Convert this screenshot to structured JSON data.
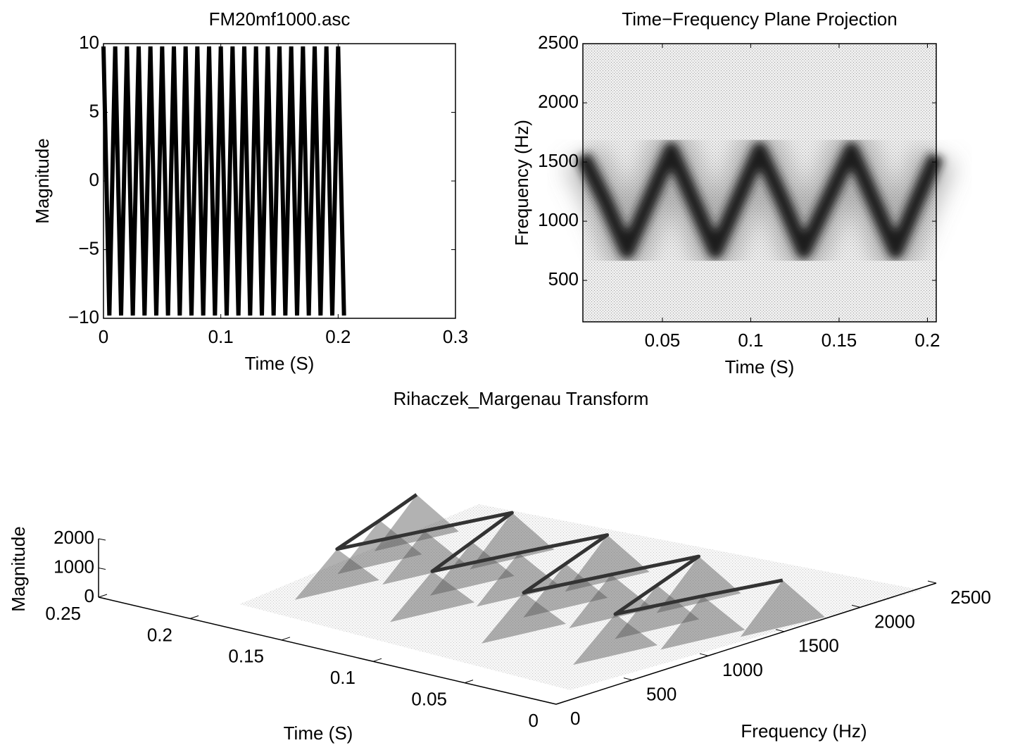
{
  "chart_data": [
    {
      "type": "line",
      "title": "FM20mf1000.asc",
      "x_label": "Time (S)",
      "y_label": "Magnitude",
      "color": "#000000",
      "x": [
        0,
        0.005,
        0.01,
        0.015,
        0.02,
        0.025,
        0.03,
        0.035,
        0.04,
        0.045,
        0.05,
        0.055,
        0.06,
        0.065,
        0.07,
        0.075,
        0.08,
        0.085,
        0.09,
        0.095,
        0.1,
        0.105,
        0.11,
        0.115,
        0.12,
        0.125,
        0.13,
        0.135,
        0.14,
        0.145,
        0.15,
        0.155,
        0.16,
        0.165,
        0.17,
        0.175,
        0.18,
        0.185,
        0.19,
        0.195,
        0.2,
        0.205
      ],
      "values": [
        9.8,
        -9.8,
        9.8,
        -9.8,
        9.8,
        -9.8,
        9.8,
        -9.8,
        9.8,
        -9.8,
        9.8,
        -9.8,
        9.8,
        -9.8,
        9.8,
        -9.8,
        9.8,
        -9.8,
        9.8,
        -9.8,
        9.8,
        -9.8,
        9.8,
        -9.8,
        9.8,
        -9.8,
        9.8,
        -9.8,
        9.8,
        -9.8,
        9.8,
        -9.8,
        9.8,
        -9.8,
        9.8,
        -9.8,
        9.8,
        -9.8,
        9.8,
        -9.8,
        9.8,
        -9.8
      ],
      "xlim": [
        0,
        0.3
      ],
      "ylim": [
        -10,
        10
      ],
      "xticks": [
        0,
        0.1,
        0.2,
        0.3
      ],
      "yticks": [
        {
          "value": -10,
          "label": "−10"
        },
        {
          "value": -5,
          "label": "−5"
        },
        0,
        5,
        10
      ]
    },
    {
      "type": "ridge",
      "title": "Time−Frequency Plane Projection",
      "x_label": "Time (S)",
      "y_label": "Frequency (Hz)",
      "color": "#1a1a1a",
      "x": [
        0.005,
        0.0175,
        0.03,
        0.0425,
        0.055,
        0.0675,
        0.08,
        0.0925,
        0.105,
        0.118,
        0.13,
        0.1435,
        0.157,
        0.1695,
        0.182,
        0.194,
        0.205
      ],
      "values": [
        1550,
        1175,
        750,
        1175,
        1600,
        1175,
        750,
        1175,
        1600,
        1175,
        750,
        1175,
        1600,
        1175,
        750,
        1175,
        1550
      ],
      "xlim": [
        0.005,
        0.205
      ],
      "ylim": [
        150,
        2500
      ],
      "xticks": [
        0.05,
        0.1,
        0.15,
        0.2
      ],
      "yticks": [
        500,
        1000,
        1500,
        2000,
        2500
      ]
    },
    {
      "type": "surface3d",
      "title": "Rihaczek_Margenau Transform",
      "x_label": "Time (S)",
      "y_label": "Frequency (Hz)",
      "z_label": "Magnitude",
      "color": "#333333",
      "x": [
        0.005,
        0.0175,
        0.03,
        0.0425,
        0.055,
        0.0675,
        0.08,
        0.0925,
        0.105,
        0.118,
        0.13,
        0.1435,
        0.157,
        0.1695,
        0.182,
        0.194,
        0.205
      ],
      "y": [
        1550,
        1175,
        750,
        1175,
        1600,
        1175,
        750,
        1175,
        1600,
        1175,
        750,
        1175,
        1600,
        1175,
        750,
        1175,
        1550
      ],
      "values": [
        1600,
        1500,
        1400,
        1500,
        1600,
        1500,
        1400,
        1500,
        1600,
        1500,
        1400,
        1500,
        1600,
        1500,
        1400,
        1500,
        1600
      ],
      "xlim": [
        0,
        0.25
      ],
      "ylim": [
        0,
        2500
      ],
      "zlim": [
        0,
        2000
      ],
      "xticks": [
        0,
        0.05,
        0.1,
        0.15,
        0.2,
        0.25
      ],
      "yticks": [
        0,
        500,
        1000,
        1500,
        2000,
        2500
      ],
      "zticks": [
        0,
        1000,
        2000
      ]
    }
  ]
}
